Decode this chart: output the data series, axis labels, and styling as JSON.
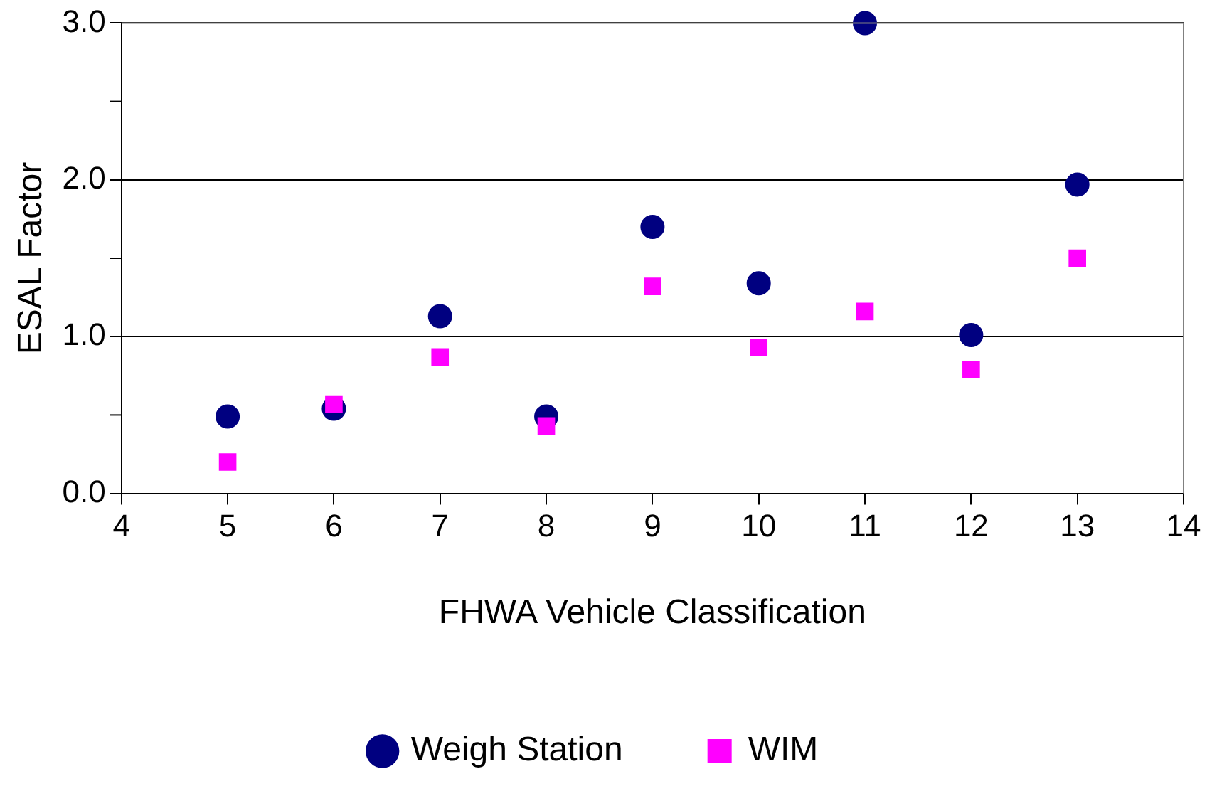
{
  "chart_data": {
    "type": "scatter",
    "xlabel": "FHWA Vehicle Classification",
    "ylabel": "ESAL Factor",
    "x": [
      5,
      6,
      7,
      8,
      9,
      10,
      11,
      12,
      13
    ],
    "series": [
      {
        "name": "Weigh Station",
        "color": "#000080",
        "marker": "circle",
        "values": [
          0.49,
          0.54,
          1.13,
          0.49,
          1.7,
          1.34,
          3.0,
          1.01,
          1.97
        ]
      },
      {
        "name": "WIM",
        "color": "#ff00ff",
        "marker": "square",
        "values": [
          0.2,
          0.57,
          0.87,
          0.43,
          1.32,
          0.93,
          1.16,
          0.79,
          1.5
        ]
      }
    ],
    "xlim": [
      4,
      14
    ],
    "xticks": [
      4,
      5,
      6,
      7,
      8,
      9,
      10,
      11,
      12,
      13,
      14
    ],
    "ylim": [
      0,
      3
    ],
    "yticks": [
      {
        "value": 0,
        "label": "0.0"
      },
      {
        "value": 0.5,
        "label": null
      },
      {
        "value": 1,
        "label": "1.0"
      },
      {
        "value": 1.5,
        "label": null
      },
      {
        "value": 2,
        "label": "2.0"
      },
      {
        "value": 2.5,
        "label": null
      },
      {
        "value": 3,
        "label": "3.0"
      }
    ],
    "grid": "y",
    "legend": "bottom"
  }
}
